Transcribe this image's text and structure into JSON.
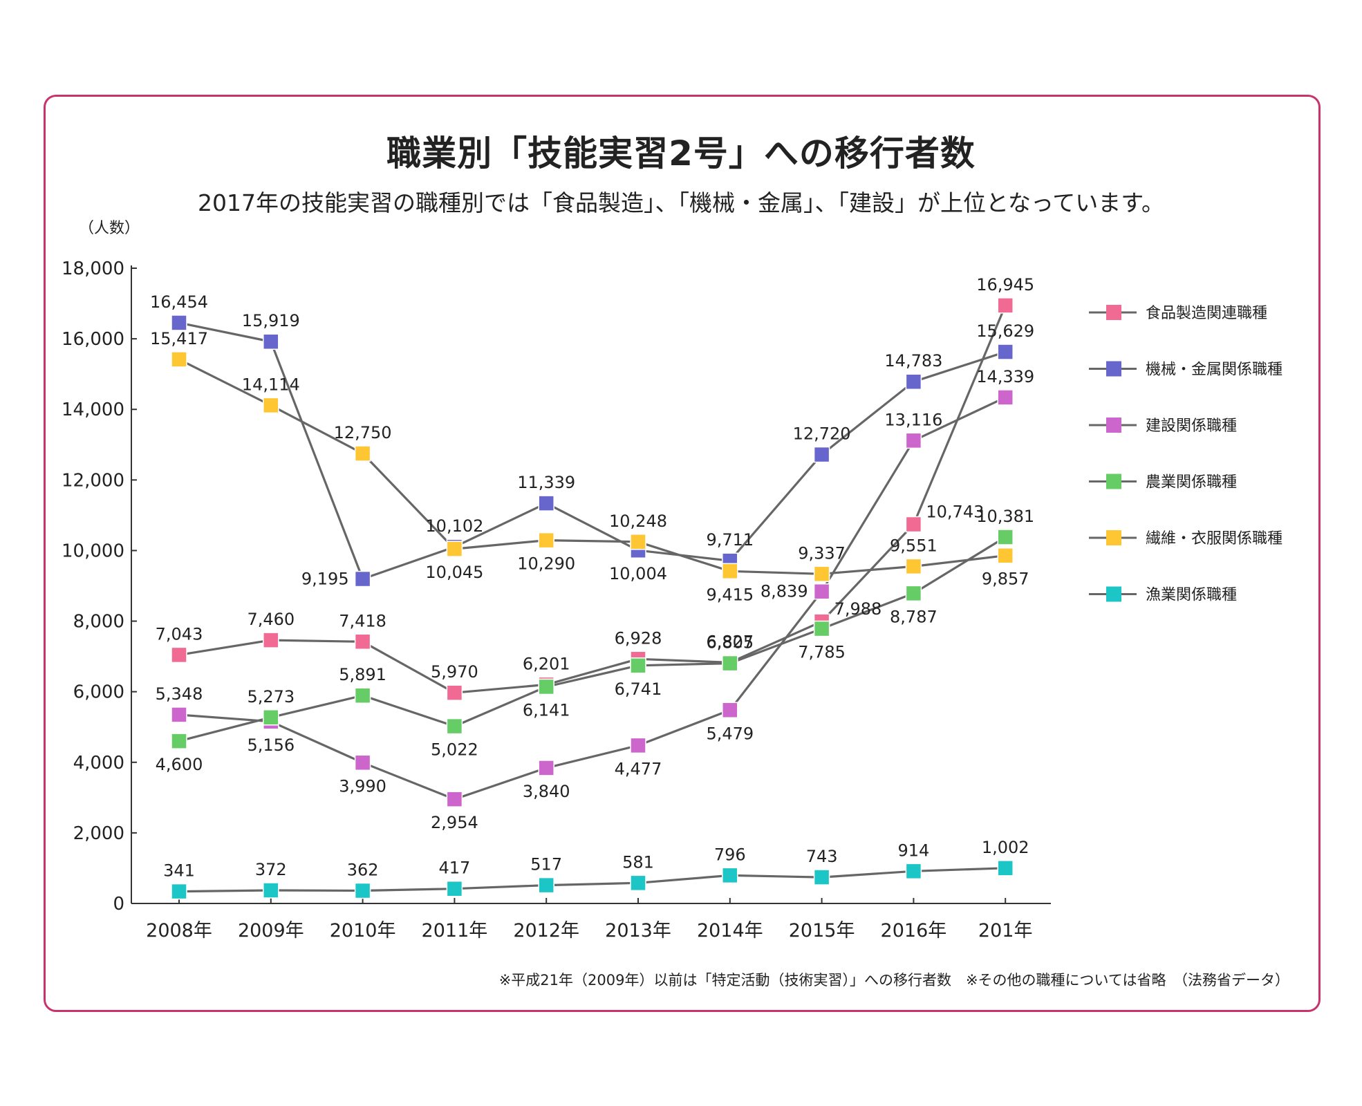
{
  "title": "職業別「技能実習2号」への移行者数",
  "subtitle": "2017年の技能実習の職種別では「食品製造」、「機械・金属」、「建設」が上位となっています。",
  "footnote": "※平成21年（2009年）以前は「特定活動（技術実習）」への移行者数　※その他の職種については省略　（法務省データ）",
  "frame_color": "#c8336c",
  "chart_data": {
    "type": "line",
    "ylabel": "（人数）",
    "ylim": [
      0,
      18000
    ],
    "yticks": [
      0,
      2000,
      4000,
      6000,
      8000,
      10000,
      12000,
      14000,
      16000,
      18000
    ],
    "ytick_labels": [
      "0",
      "2,000",
      "4,000",
      "6,000",
      "8,000",
      "10,000",
      "12,000",
      "14,000",
      "16,000",
      "18,000"
    ],
    "categories": [
      "2008年",
      "2009年",
      "2010年",
      "2011年",
      "2012年",
      "2013年",
      "2014年",
      "2015年",
      "2016年",
      "201年"
    ],
    "line_color": "#666666",
    "legend_position": "right",
    "grid": false,
    "series": [
      {
        "name": "食品製造関連職種",
        "color": "#f06a94",
        "values": [
          7043,
          7460,
          7418,
          5970,
          6201,
          6928,
          6827,
          7988,
          10743,
          16945
        ],
        "labels": [
          "7,043",
          "7,460",
          "7,418",
          "5,970",
          "6,201",
          "6,928",
          "6,827",
          "7,988",
          "10,743",
          "16,945"
        ]
      },
      {
        "name": "機械・金属関係職種",
        "color": "#6666cc",
        "values": [
          16454,
          15919,
          9195,
          10102,
          11339,
          10004,
          9711,
          12720,
          14783,
          15629
        ],
        "labels": [
          "16,454",
          "15,919",
          "9,195",
          "10,102",
          "11,339",
          "10,004",
          "9,711",
          "12,720",
          "14,783",
          "15,629"
        ]
      },
      {
        "name": "建設関係職種",
        "color": "#cc66cc",
        "values": [
          5348,
          5156,
          3990,
          2954,
          3840,
          4477,
          5479,
          8839,
          13116,
          14339
        ],
        "labels": [
          "5,348",
          "5,156",
          "3,990",
          "2,954",
          "3,840",
          "4,477",
          "5,479",
          "8,839",
          "13,116",
          "14,339"
        ]
      },
      {
        "name": "農業関係職種",
        "color": "#66cc66",
        "values": [
          4600,
          5273,
          5891,
          5022,
          6141,
          6741,
          6805,
          7785,
          8787,
          10381
        ],
        "labels": [
          "4,600",
          "5,273",
          "5,891",
          "5,022",
          "6,141",
          "6,741",
          "6,805",
          "7,785",
          "8,787",
          "10,381"
        ]
      },
      {
        "name": "繊維・衣服関係職種",
        "color": "#ffc634",
        "values": [
          15417,
          14114,
          12750,
          10045,
          10290,
          10248,
          9415,
          9337,
          9551,
          9857
        ],
        "labels": [
          "15,417",
          "14,114",
          "12,750",
          "10,045",
          "10,290",
          "10,248",
          "9,415",
          "9,337",
          "9,551",
          "9,857"
        ]
      },
      {
        "name": "漁業関係職種",
        "color": "#1cc6c6",
        "values": [
          341,
          372,
          362,
          417,
          517,
          581,
          796,
          743,
          914,
          1002
        ],
        "labels": [
          "341",
          "372",
          "362",
          "417",
          "517",
          "581",
          "796",
          "743",
          "914",
          "1,002"
        ]
      }
    ]
  }
}
